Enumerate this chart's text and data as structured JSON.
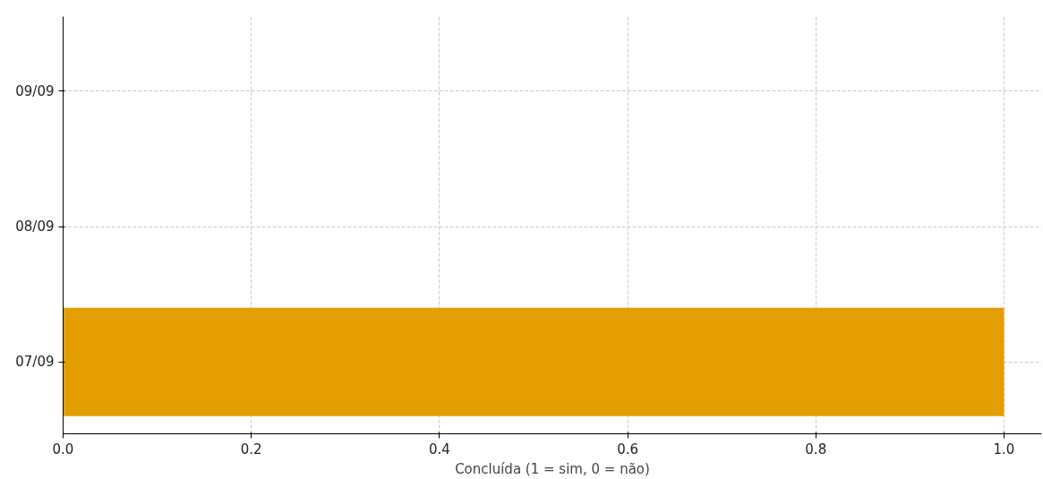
{
  "chart_data": {
    "type": "bar",
    "orientation": "horizontal",
    "xlabel": "Concluída (1 = sim, 0 = não)",
    "categories": [
      "09/09",
      "08/09",
      "07/09"
    ],
    "values": [
      0,
      0,
      1
    ],
    "color": "#e39f00",
    "xlim": [
      0,
      1.04
    ],
    "xticks": [
      {
        "value": 0,
        "label": "0.0"
      },
      {
        "value": 0.2,
        "label": "0.2"
      },
      {
        "value": 0.4,
        "label": "0.4"
      },
      {
        "value": 0.6,
        "label": "0.6"
      },
      {
        "value": 0.8,
        "label": "0.8"
      },
      {
        "value": 1,
        "label": "1.0"
      }
    ],
    "grid": true
  }
}
